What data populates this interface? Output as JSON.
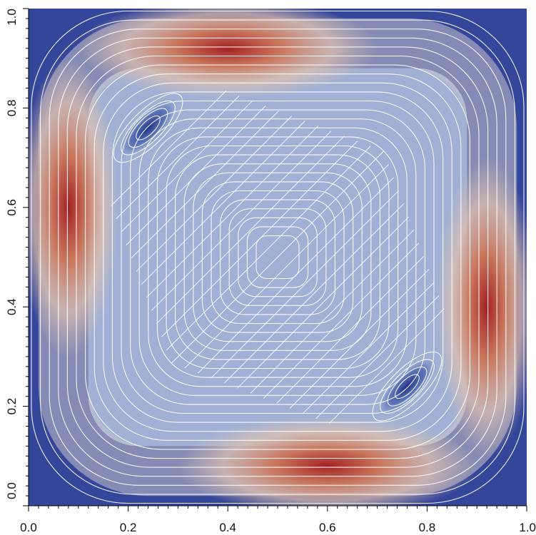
{
  "chart_data": {
    "type": "heatmap",
    "title": "",
    "xlabel": "",
    "ylabel": "",
    "xlim": [
      0.0,
      1.0
    ],
    "ylim": [
      0.0,
      1.0
    ],
    "x_ticks": [
      "0.0",
      "0.2",
      "0.4",
      "0.6",
      "0.8",
      "1.0"
    ],
    "y_ticks": [
      "0.0",
      "0.2",
      "0.4",
      "0.6",
      "0.8",
      "1.0"
    ],
    "grid": false,
    "legend": "none",
    "overlay": "streamlines",
    "colormap": [
      "#3b4d9c",
      "#6f8bc7",
      "#a6b7d8",
      "#e3c2ad",
      "#cc7457",
      "#a31f23"
    ],
    "hotspots": [
      {
        "x": 0.4,
        "y": 0.92
      },
      {
        "x": 0.08,
        "y": 0.6
      },
      {
        "x": 0.6,
        "y": 0.08
      },
      {
        "x": 0.92,
        "y": 0.4
      }
    ],
    "vortex_cores": [
      {
        "x": 0.24,
        "y": 0.76
      },
      {
        "x": 0.76,
        "y": 0.24
      }
    ],
    "colors": {
      "background": "#34469a",
      "streamline": "#ffffff",
      "core": "#a6b7d8"
    }
  }
}
